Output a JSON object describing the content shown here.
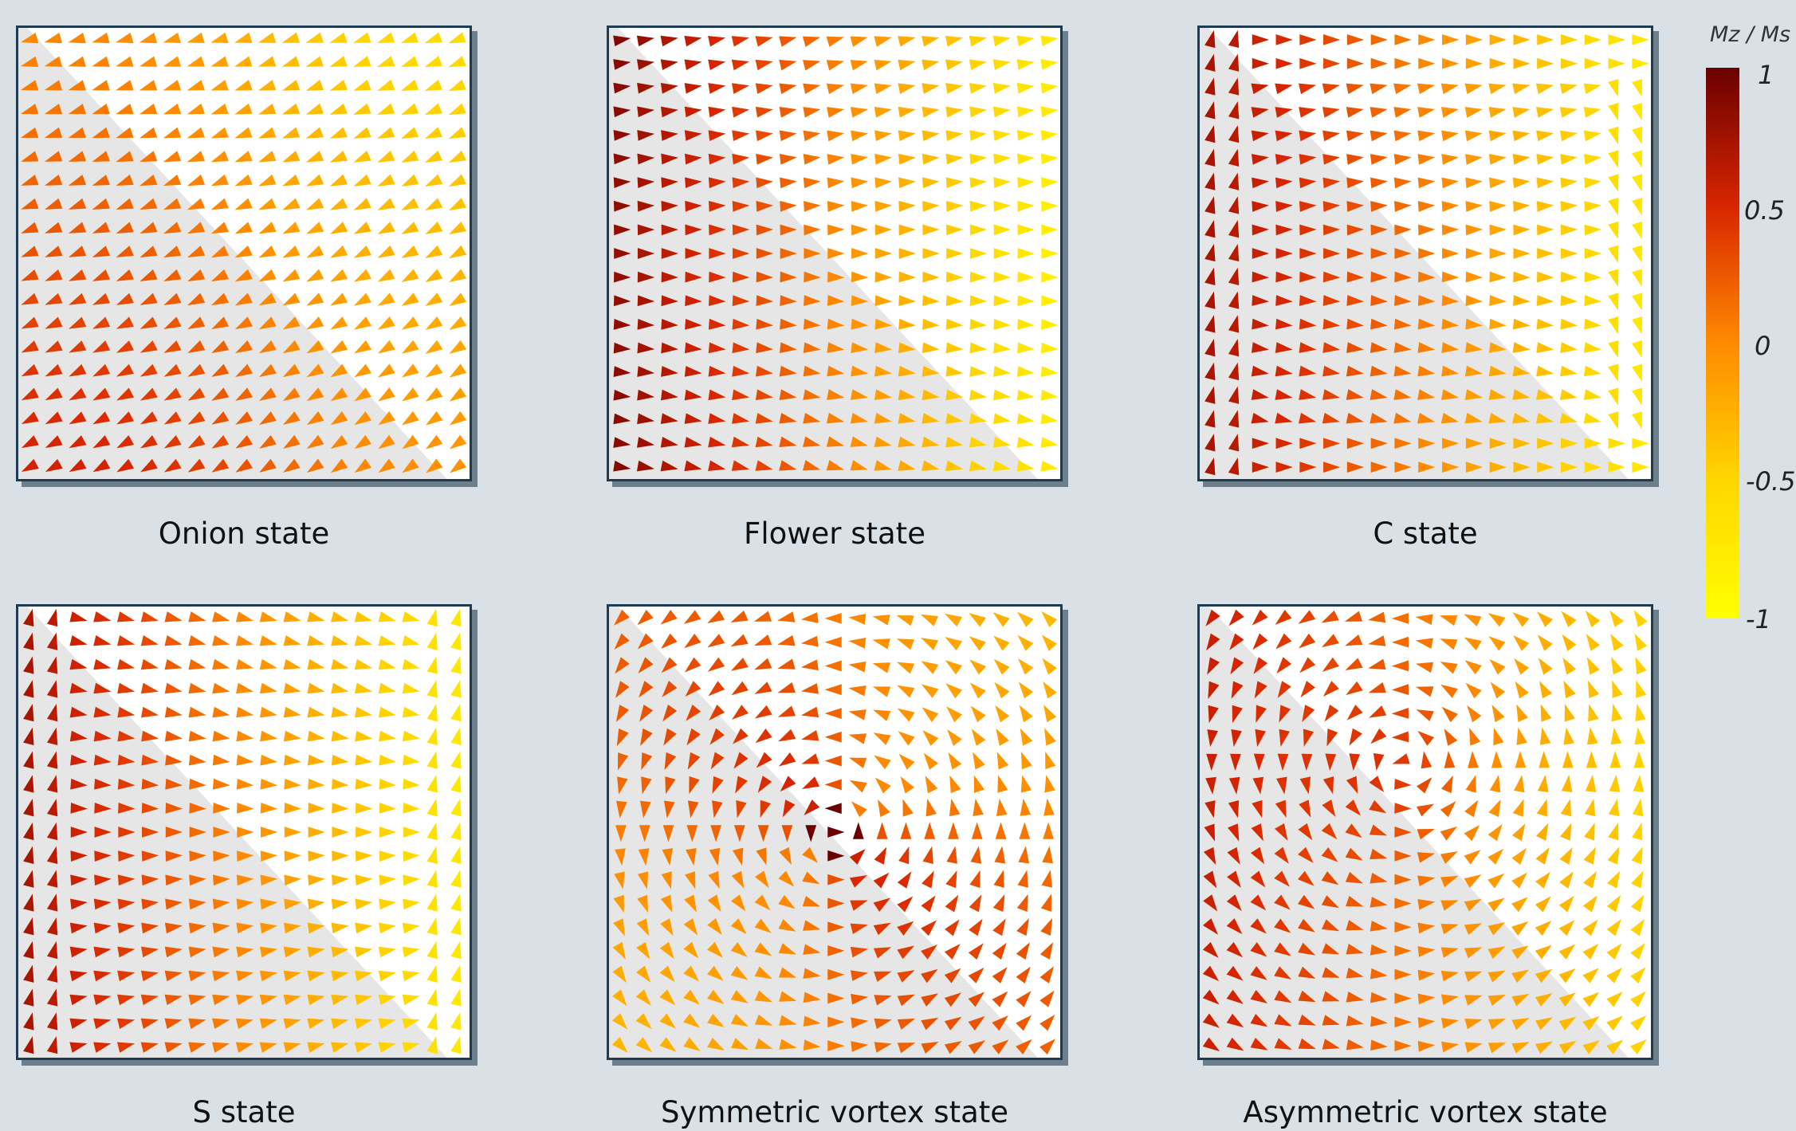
{
  "panels": [
    {
      "caption": "Onion state",
      "pattern": "onion"
    },
    {
      "caption": "Flower state",
      "pattern": "flower"
    },
    {
      "caption": "C state",
      "pattern": "c"
    },
    {
      "caption": "S state",
      "pattern": "s"
    },
    {
      "caption": "Symmetric vortex state",
      "pattern": "symvortex"
    },
    {
      "caption": "Asymmetric vortex state",
      "pattern": "asymvortex"
    }
  ],
  "colorbar": {
    "title": "Mz / Ms",
    "ticks": [
      {
        "label": "1",
        "value": 1
      },
      {
        "label": "0.5",
        "value": 0.5
      },
      {
        "label": "0",
        "value": 0
      },
      {
        "label": "-0.5",
        "value": -0.5
      },
      {
        "label": "-1",
        "value": -1
      }
    ],
    "colors": [
      "#6b0000",
      "#d82500",
      "#ff8a00",
      "#ffd600",
      "#ffff00"
    ]
  }
}
